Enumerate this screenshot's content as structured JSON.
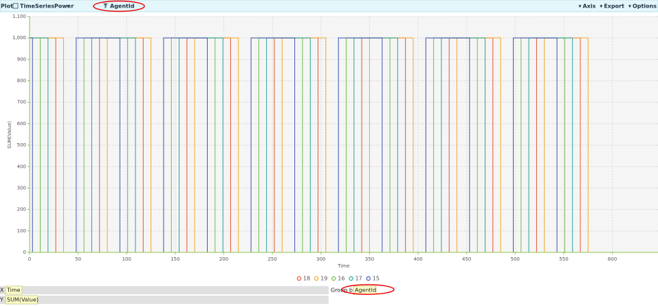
{
  "toolbar": {
    "plot_label": "Plot",
    "dataset": "TimeSeriesPower",
    "filter": "AgentId",
    "menus": [
      "Axis",
      "Export",
      "Options"
    ]
  },
  "chart_data": {
    "type": "line",
    "x_label": "Time",
    "y_label": "SUM(Value)",
    "xlim": [
      0,
      647
    ],
    "xticks": [
      0,
      50,
      100,
      150,
      200,
      250,
      300,
      350,
      400,
      450,
      500,
      550,
      600
    ],
    "ylim": [
      0,
      1100
    ],
    "yticks": [
      0,
      100,
      200,
      300,
      400,
      500,
      600,
      700,
      800,
      900,
      {
        "value": 1000,
        "label": "1,000"
      },
      {
        "value": 1100,
        "label": "1,100"
      }
    ],
    "grid": true,
    "series": [
      {
        "name": "18",
        "color": "#e8542c",
        "x": [
          0,
          27,
          27,
          72,
          72,
          117,
          117,
          162,
          162,
          207,
          207,
          252,
          252,
          297,
          297,
          342,
          342,
          387,
          387,
          432,
          432,
          477,
          477,
          522,
          522,
          567,
          567,
          598
        ],
        "values": [
          1000,
          1000,
          0,
          0,
          1000,
          1000,
          0,
          0,
          1000,
          1000,
          0,
          0,
          1000,
          1000,
          0,
          0,
          1000,
          1000,
          0,
          0,
          1000,
          1000,
          0,
          0,
          1000,
          1000,
          0,
          0
        ]
      },
      {
        "name": "19",
        "color": "#f5a623",
        "x": [
          0,
          35,
          35,
          80,
          80,
          125,
          125,
          170,
          170,
          215,
          215,
          260,
          260,
          305,
          305,
          350,
          350,
          395,
          395,
          440,
          440,
          485,
          485,
          530,
          530,
          575,
          575,
          598
        ],
        "values": [
          1000,
          1000,
          0,
          0,
          1000,
          1000,
          0,
          0,
          1000,
          1000,
          0,
          0,
          1000,
          1000,
          0,
          0,
          1000,
          1000,
          0,
          0,
          1000,
          1000,
          0,
          0,
          1000,
          1000,
          0,
          0
        ]
      },
      {
        "name": "16",
        "color": "#6cbf4a",
        "x": [
          0,
          11,
          11,
          56,
          56,
          101,
          101,
          146,
          146,
          191,
          191,
          236,
          236,
          281,
          281,
          326,
          326,
          371,
          371,
          416,
          416,
          461,
          461,
          506,
          506,
          551,
          551,
          598
        ],
        "values": [
          1000,
          1000,
          0,
          0,
          1000,
          1000,
          0,
          0,
          1000,
          1000,
          0,
          0,
          1000,
          1000,
          0,
          0,
          1000,
          1000,
          0,
          0,
          1000,
          1000,
          0,
          0,
          1000,
          1000,
          0,
          0
        ]
      },
      {
        "name": "17",
        "color": "#26a69a",
        "x": [
          0,
          19,
          19,
          64,
          64,
          109,
          109,
          154,
          154,
          199,
          199,
          244,
          244,
          289,
          289,
          334,
          334,
          379,
          379,
          424,
          424,
          469,
          469,
          514,
          514,
          559,
          559,
          598
        ],
        "values": [
          1000,
          1000,
          0,
          0,
          1000,
          1000,
          0,
          0,
          1000,
          1000,
          0,
          0,
          1000,
          1000,
          0,
          0,
          1000,
          1000,
          0,
          0,
          1000,
          1000,
          0,
          0,
          1000,
          1000,
          0,
          0
        ]
      },
      {
        "name": "15",
        "color": "#3f51b5",
        "x": [
          0,
          3,
          3,
          48,
          48,
          93,
          93,
          138,
          138,
          183,
          183,
          228,
          228,
          273,
          273,
          318,
          318,
          363,
          363,
          408,
          408,
          453,
          453,
          498,
          498,
          543,
          543,
          598
        ],
        "values": [
          1000,
          1000,
          0,
          0,
          1000,
          1000,
          0,
          0,
          1000,
          1000,
          0,
          0,
          1000,
          1000,
          0,
          0,
          1000,
          1000,
          0,
          0,
          1000,
          1000,
          0,
          0,
          1000,
          1000,
          0,
          0
        ]
      }
    ]
  },
  "footer": {
    "x_label": "X",
    "x_field": "Time",
    "y_label": "Y",
    "y_field": "SUM(Value)",
    "group_by_label": "Group by",
    "group_by_field": "AgentId"
  }
}
